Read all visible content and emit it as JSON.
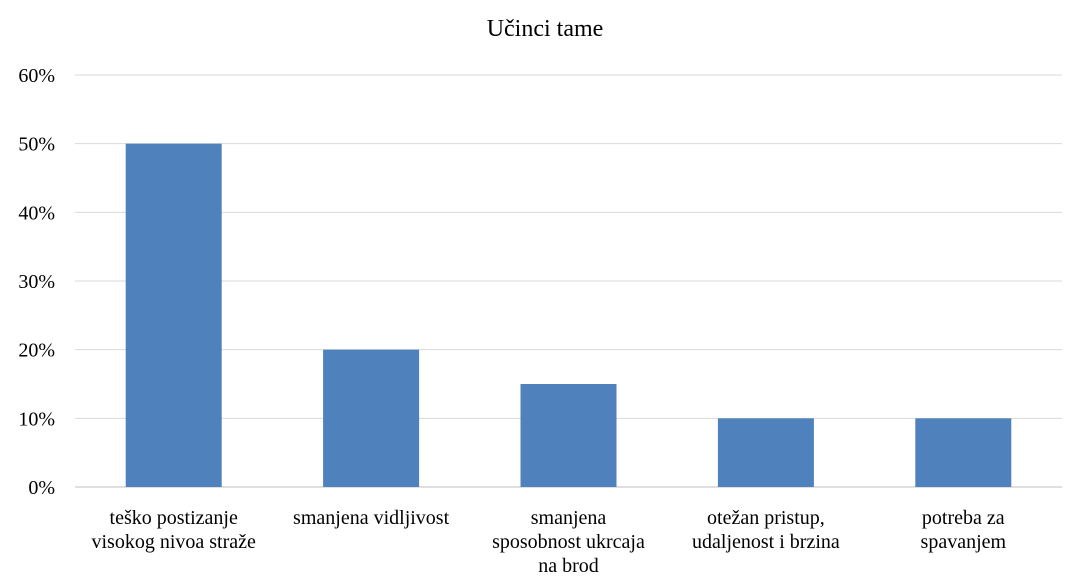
{
  "chart_data": {
    "type": "bar",
    "title": "Učinci tame",
    "categories": [
      [
        "teško postizanje",
        "visokog nivoa straže"
      ],
      [
        "smanjena vidljivost"
      ],
      [
        "smanjena",
        "sposobnost ukrcaja",
        "na brod"
      ],
      [
        "otežan pristup,",
        "udaljenost i brzina"
      ],
      [
        "potreba za",
        "spavanjem"
      ]
    ],
    "values": [
      50,
      20,
      15,
      10,
      10
    ],
    "ylim": [
      0,
      60
    ],
    "yticks": [
      "0%",
      "10%",
      "20%",
      "30%",
      "40%",
      "50%",
      "60%"
    ],
    "xlabel": "",
    "ylabel": "",
    "grid": true,
    "bar_color": "#4f81bd"
  }
}
